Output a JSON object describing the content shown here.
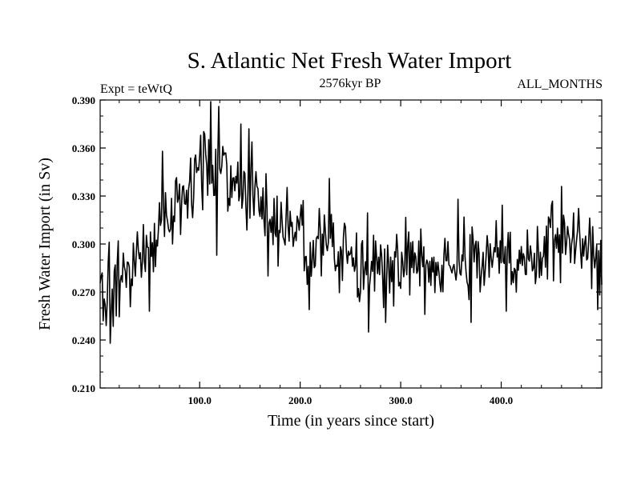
{
  "chart_data": {
    "type": "line",
    "title": "S. Atlantic Net Fresh Water Import",
    "subtitle_left": "Expt = teWtQ",
    "subtitle_center": "2576kyr BP",
    "subtitle_right": "ALL_MONTHS",
    "xlabel": "Time (in years since start)",
    "ylabel": "Fresh Water Import (in Sv)",
    "xlim": [
      1,
      500
    ],
    "ylim": [
      0.21,
      0.39
    ],
    "xticks": [
      100,
      200,
      300,
      400
    ],
    "xtick_labels": [
      "100.0",
      "200.0",
      "300.0",
      "400.0"
    ],
    "yticks": [
      0.21,
      0.24,
      0.27,
      0.3,
      0.33,
      0.36,
      0.39
    ],
    "ytick_labels": [
      "0.210",
      "0.240",
      "0.270",
      "0.300",
      "0.330",
      "0.360",
      "0.390"
    ],
    "grid": false,
    "series_trend": {
      "x": [
        1,
        10,
        30,
        50,
        70,
        90,
        100,
        110,
        120,
        135,
        150,
        165,
        180,
        200,
        230,
        260,
        300,
        340,
        380,
        420,
        460,
        480,
        500
      ],
      "y": [
        0.283,
        0.268,
        0.283,
        0.3,
        0.315,
        0.333,
        0.345,
        0.35,
        0.345,
        0.34,
        0.336,
        0.322,
        0.312,
        0.302,
        0.3,
        0.285,
        0.29,
        0.285,
        0.293,
        0.29,
        0.305,
        0.3,
        0.285
      ]
    },
    "series_noise": {
      "amplitude": 0.017,
      "seed": 20576
    },
    "series_spikes": [
      {
        "x": 4,
        "y": 0.252
      },
      {
        "x": 7,
        "y": 0.249
      },
      {
        "x": 11,
        "y": 0.238
      },
      {
        "x": 19,
        "y": 0.302
      },
      {
        "x": 48,
        "y": 0.298
      },
      {
        "x": 50,
        "y": 0.258
      },
      {
        "x": 63,
        "y": 0.358
      },
      {
        "x": 101,
        "y": 0.368
      },
      {
        "x": 111,
        "y": 0.389
      },
      {
        "x": 117,
        "y": 0.293
      },
      {
        "x": 119,
        "y": 0.386
      },
      {
        "x": 141,
        "y": 0.375
      },
      {
        "x": 149,
        "y": 0.372
      },
      {
        "x": 168,
        "y": 0.28
      },
      {
        "x": 209,
        "y": 0.259
      },
      {
        "x": 229,
        "y": 0.341
      },
      {
        "x": 268,
        "y": 0.245
      },
      {
        "x": 285,
        "y": 0.251
      },
      {
        "x": 324,
        "y": 0.256
      },
      {
        "x": 357,
        "y": 0.328
      },
      {
        "x": 370,
        "y": 0.251
      },
      {
        "x": 405,
        "y": 0.258
      },
      {
        "x": 460,
        "y": 0.336
      },
      {
        "x": 496,
        "y": 0.259
      }
    ]
  }
}
